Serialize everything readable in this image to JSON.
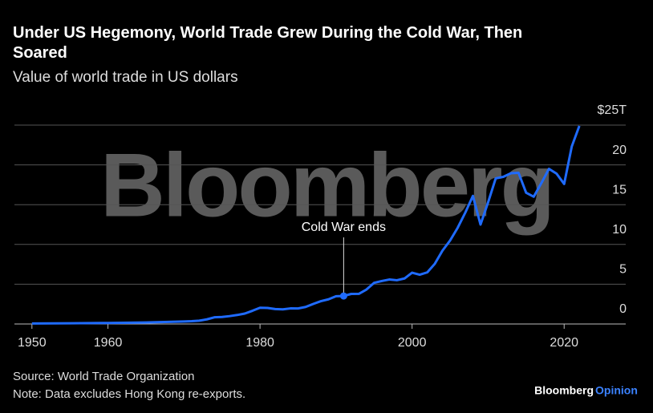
{
  "chart_data": {
    "type": "line",
    "title": "Under US Hegemony, World Trade Grew During the Cold War, Then Soared",
    "subtitle": "Value of world trade in US dollars",
    "watermark": "Bloomberg",
    "x": [
      1950,
      1955,
      1960,
      1965,
      1970,
      1971,
      1972,
      1973,
      1974,
      1975,
      1976,
      1977,
      1978,
      1979,
      1980,
      1981,
      1982,
      1983,
      1984,
      1985,
      1986,
      1987,
      1988,
      1989,
      1990,
      1991,
      1992,
      1993,
      1994,
      1995,
      1996,
      1997,
      1998,
      1999,
      2000,
      2001,
      2002,
      2003,
      2004,
      2005,
      2006,
      2007,
      2008,
      2009,
      2010,
      2011,
      2012,
      2013,
      2014,
      2015,
      2016,
      2017,
      2018,
      2019,
      2020,
      2021,
      2022
    ],
    "series": [
      {
        "name": "World trade",
        "color": "#1f6bff",
        "values": [
          0.06,
          0.09,
          0.13,
          0.19,
          0.32,
          0.35,
          0.42,
          0.58,
          0.84,
          0.88,
          0.99,
          1.13,
          1.31,
          1.66,
          2.04,
          2.02,
          1.88,
          1.84,
          1.96,
          1.95,
          2.14,
          2.52,
          2.87,
          3.1,
          3.49,
          3.52,
          3.78,
          3.79,
          4.33,
          5.17,
          5.4,
          5.59,
          5.5,
          5.72,
          6.45,
          6.19,
          6.49,
          7.58,
          9.22,
          10.5,
          12.1,
          14.0,
          16.1,
          12.5,
          15.3,
          18.3,
          18.5,
          18.95,
          19.0,
          16.5,
          16.0,
          17.7,
          19.5,
          18.9,
          17.6,
          22.3,
          24.9
        ]
      }
    ],
    "annotations": [
      {
        "text": "Cold War ends",
        "x": 1991
      }
    ],
    "xlim": [
      1947.7,
      2028.1
    ],
    "xticks": [
      1950,
      1960,
      1980,
      2000,
      2020
    ],
    "ylim": [
      0,
      25
    ],
    "yticks": [
      0,
      5,
      10,
      15,
      20,
      {
        "value": 25,
        "label": "$25T"
      }
    ],
    "grid": true,
    "source": "Source: World Trade Organization",
    "note": "Note: Data excludes Hong Kong re-exports.",
    "brand": [
      "Bloomberg",
      "Opinion"
    ]
  }
}
